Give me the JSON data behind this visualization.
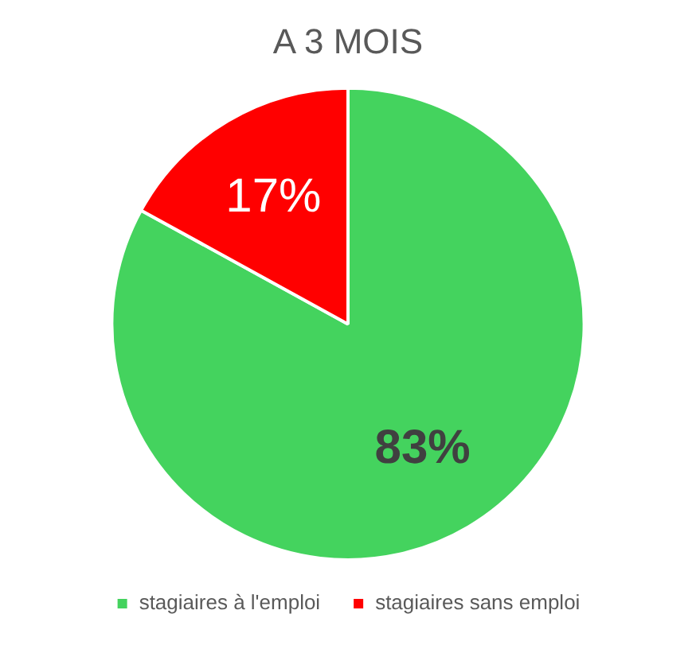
{
  "chart_data": {
    "type": "pie",
    "title": "A 3 MOIS",
    "categories": [
      "stagiaires à l'emploi",
      "stagiaires sans emploi"
    ],
    "values": [
      83,
      17
    ],
    "colors": [
      "#44d35e",
      "#ff0000"
    ],
    "value_labels": [
      "83%",
      "17%"
    ],
    "legend": "bottom"
  }
}
